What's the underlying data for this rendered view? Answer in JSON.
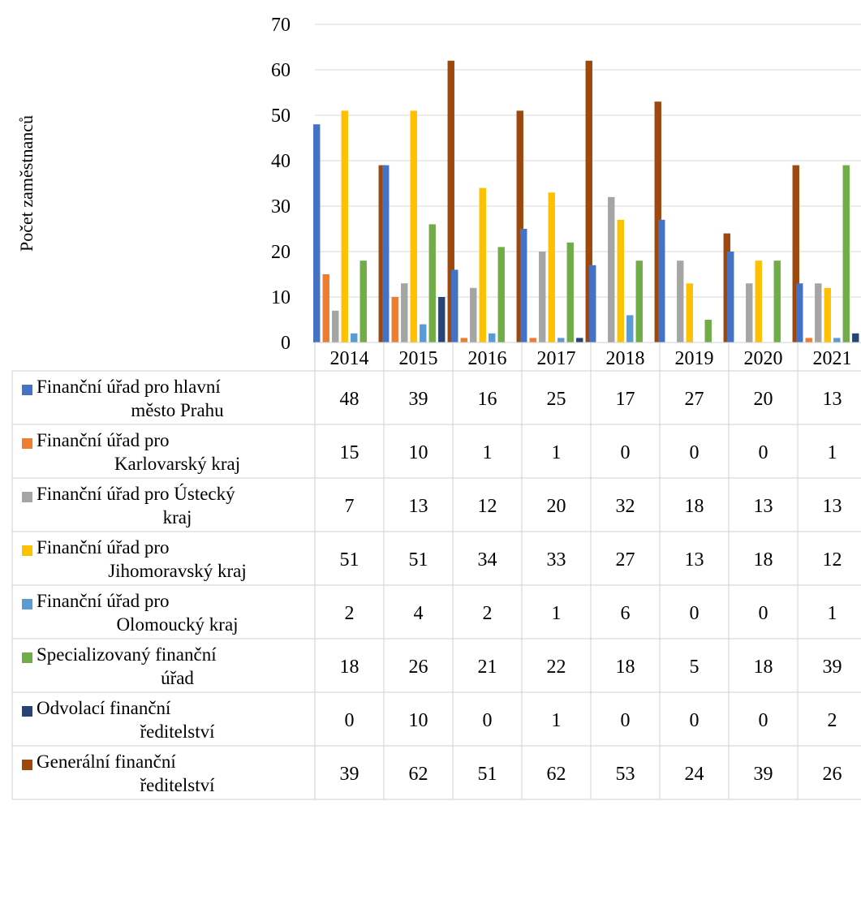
{
  "chart_data": {
    "type": "bar",
    "ylabel": "Počet zaměstnanců",
    "ylim": [
      0,
      70
    ],
    "yticks": [
      0,
      10,
      20,
      30,
      40,
      50,
      60,
      70
    ],
    "grid": true,
    "categories": [
      "2014",
      "2015",
      "2016",
      "2017",
      "2018",
      "2019",
      "2020",
      "2021"
    ],
    "series": [
      {
        "name": "Finanční úřad pro hlavní město Prahu",
        "name_lines": [
          "Finanční úřad pro hlavní",
          "město Prahu"
        ],
        "color": "#4472C4",
        "values": [
          48,
          39,
          16,
          25,
          17,
          27,
          20,
          13
        ]
      },
      {
        "name": "Finanční úřad pro Karlovarský kraj",
        "name_lines": [
          "Finanční úřad pro",
          "Karlovarský kraj"
        ],
        "color": "#ED7D31",
        "values": [
          15,
          10,
          1,
          1,
          0,
          0,
          0,
          1
        ]
      },
      {
        "name": "Finanční úřad pro Ústecký kraj",
        "name_lines": [
          "Finanční úřad pro Ústecký",
          "kraj"
        ],
        "color": "#A5A5A5",
        "values": [
          7,
          13,
          12,
          20,
          32,
          18,
          13,
          13
        ]
      },
      {
        "name": "Finanční úřad pro Jihomoravský kraj",
        "name_lines": [
          "Finanční úřad pro",
          "Jihomoravský kraj"
        ],
        "color": "#FFC000",
        "values": [
          51,
          51,
          34,
          33,
          27,
          13,
          18,
          12
        ]
      },
      {
        "name": "Finanční úřad pro Olomoucký kraj",
        "name_lines": [
          "Finanční úřad pro",
          "Olomoucký kraj"
        ],
        "color": "#5B9BD5",
        "values": [
          2,
          4,
          2,
          1,
          6,
          0,
          0,
          1
        ]
      },
      {
        "name": "Specializovaný finanční úřad",
        "name_lines": [
          "Specializovaný finanční",
          "úřad"
        ],
        "color": "#70AD47",
        "values": [
          18,
          26,
          21,
          22,
          18,
          5,
          18,
          39
        ]
      },
      {
        "name": "Odvolací finanční ředitelství",
        "name_lines": [
          "Odvolací finanční",
          "ředitelství"
        ],
        "color": "#264478",
        "values": [
          0,
          10,
          0,
          1,
          0,
          0,
          0,
          2
        ]
      },
      {
        "name": "Generální finanční ředitelství",
        "name_lines": [
          "Generální finanční",
          "ředitelství"
        ],
        "color": "#9E480E",
        "values": [
          39,
          62,
          51,
          62,
          53,
          24,
          39,
          26
        ]
      }
    ]
  }
}
